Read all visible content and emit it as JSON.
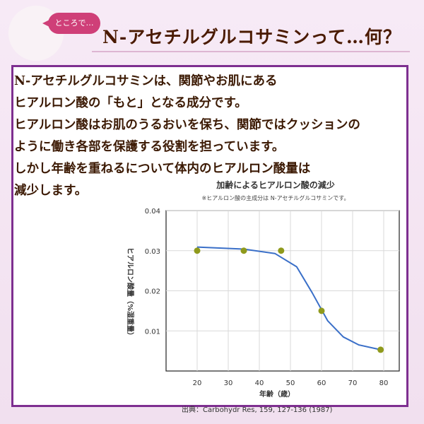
{
  "header": {
    "bubble_text": "ところで…",
    "title": "N-アセチルグルコサミンって…何？"
  },
  "description": {
    "lines": [
      "N-アセチルグルコサミンは、関節やお肌にある",
      "ヒアルロン酸の「もと」となる成分です。",
      "ヒアルロン酸はお肌のうるおいを保ち、関節ではクッションの",
      "ように働き各部を保護する役割を担っています。",
      "しかし年齢を重ねるについて体内のヒアルロン酸量は",
      "減少します。"
    ]
  },
  "chart_data": {
    "type": "scatter",
    "title": "加齢によるヒアルロン酸の減少",
    "subtitle": "※ヒアルロン酸の主成分は N-アセチルグルコサミンです。",
    "xlabel": "年齢（歳）",
    "ylabel": "ヒアルロン酸量（%湿重量）",
    "xlim": [
      10,
      85
    ],
    "ylim": [
      0,
      0.04
    ],
    "x_ticks": [
      20,
      30,
      40,
      50,
      60,
      70,
      80
    ],
    "y_ticks": [
      0.01,
      0.02,
      0.03,
      0.04
    ],
    "points": [
      {
        "x": 20,
        "y": 0.03
      },
      {
        "x": 35,
        "y": 0.03
      },
      {
        "x": 47,
        "y": 0.03
      },
      {
        "x": 60,
        "y": 0.015
      },
      {
        "x": 79,
        "y": 0.0053
      }
    ],
    "trend": [
      {
        "x": 20,
        "y": 0.0309
      },
      {
        "x": 35,
        "y": 0.0304
      },
      {
        "x": 45,
        "y": 0.0293
      },
      {
        "x": 52,
        "y": 0.026
      },
      {
        "x": 57,
        "y": 0.0195
      },
      {
        "x": 62,
        "y": 0.0125
      },
      {
        "x": 67,
        "y": 0.0085
      },
      {
        "x": 72,
        "y": 0.0065
      },
      {
        "x": 79,
        "y": 0.0053
      }
    ],
    "grid": true,
    "marker_color": "#8f9a1c",
    "line_color": "#3a6fc8",
    "source": "出典：Carbohydr Res, 159, 127-136 (1987)"
  }
}
